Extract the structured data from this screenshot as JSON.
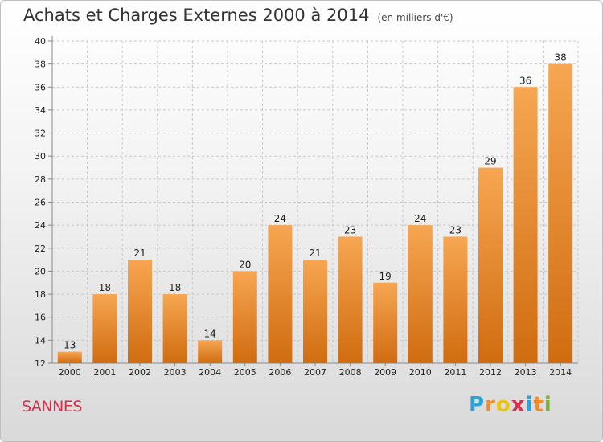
{
  "header": {
    "title": "Achats et Charges Externes 2000 à 2014",
    "subtitle": "(en milliers d'€)"
  },
  "footer": {
    "place": "SANNES",
    "logo_letters": [
      "P",
      "r",
      "o",
      "x",
      "i",
      "t",
      "i"
    ],
    "logo_colors": [
      "#2aa3d8",
      "#f28c28",
      "#e8c413",
      "#d6304a",
      "#2aa3d8",
      "#f28c28",
      "#7cb72b"
    ]
  },
  "chart_data": {
    "type": "bar",
    "title": "Achats et Charges Externes 2000 à 2014",
    "subtitle": "(en milliers d'€)",
    "xlabel": "",
    "ylabel": "",
    "categories": [
      "2000",
      "2001",
      "2002",
      "2003",
      "2004",
      "2005",
      "2006",
      "2007",
      "2008",
      "2009",
      "2010",
      "2011",
      "2012",
      "2013",
      "2014"
    ],
    "values": [
      13,
      18,
      21,
      18,
      14,
      20,
      24,
      21,
      23,
      19,
      24,
      23,
      29,
      36,
      38
    ],
    "ylim": [
      12,
      40
    ],
    "yticks": [
      "12",
      "14",
      "16",
      "18",
      "20",
      "22",
      "24",
      "26",
      "28",
      "30",
      "32",
      "34",
      "36",
      "38",
      "40"
    ],
    "grid": true,
    "colors": {
      "bar_top": "#f7a652",
      "bar_bottom": "#d06c10",
      "grid": "#c8c8c8",
      "axis": "#888888"
    }
  }
}
